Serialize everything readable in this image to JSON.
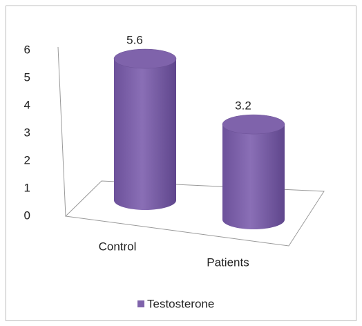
{
  "chart_data": {
    "type": "bar3d",
    "categories": [
      "Control",
      "Patients"
    ],
    "series": [
      {
        "name": "Testosterone",
        "color": "#7f63ab",
        "values": [
          5.6,
          3.2
        ]
      }
    ],
    "ylim": [
      0,
      6
    ],
    "yticks": [
      0,
      1,
      2,
      3,
      4,
      5,
      6
    ],
    "legend": "bottom"
  }
}
